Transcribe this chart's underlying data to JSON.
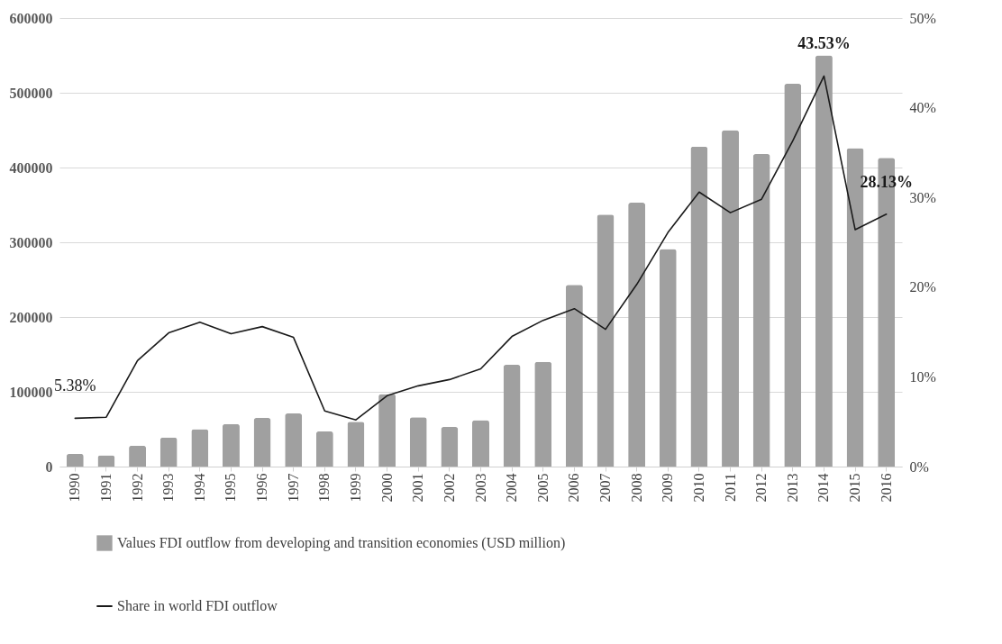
{
  "chart_data": {
    "type": "bar",
    "categories": [
      "1990",
      "1991",
      "1992",
      "1993",
      "1994",
      "1995",
      "1996",
      "1997",
      "1998",
      "1999",
      "2000",
      "2001",
      "2002",
      "2003",
      "2004",
      "2005",
      "2006",
      "2007",
      "2008",
      "2009",
      "2010",
      "2011",
      "2012",
      "2013",
      "2014",
      "2015",
      "2016"
    ],
    "series": [
      {
        "name": "Values FDI outflow from developing and transition economies (USD million)",
        "color": "#a0a0a0",
        "values": [
          17000,
          15000,
          28000,
          39000,
          50000,
          57000,
          65000,
          71000,
          47000,
          60000,
          97000,
          66000,
          53000,
          62000,
          136000,
          140000,
          243000,
          337000,
          353000,
          291000,
          428000,
          450000,
          418000,
          512000,
          550000,
          426000,
          413000
        ]
      },
      {
        "name": "Share in world FDI outflow",
        "type": "line",
        "axis": "y2",
        "color": "#1a1a1a",
        "values": [
          5.38,
          5.5,
          11.8,
          14.9,
          16.1,
          14.8,
          15.6,
          14.4,
          6.2,
          5.2,
          7.9,
          9.0,
          9.7,
          10.9,
          14.5,
          16.3,
          17.6,
          15.3,
          20.3,
          26.1,
          30.6,
          28.3,
          29.8,
          36.3,
          43.53,
          26.4,
          28.13
        ],
        "value_labels": [
          "5.38%",
          null,
          null,
          null,
          null,
          null,
          null,
          null,
          null,
          null,
          null,
          null,
          null,
          null,
          null,
          null,
          null,
          null,
          null,
          null,
          null,
          null,
          null,
          null,
          "43.53%",
          null,
          "28.13%"
        ]
      }
    ],
    "ylim": [
      0,
      600000
    ],
    "yticks": [
      0,
      100000,
      200000,
      300000,
      400000,
      500000,
      600000
    ],
    "y2lim": [
      0,
      50
    ],
    "y2ticks": [
      {
        "value": 0,
        "label": "0%"
      },
      {
        "value": 10,
        "label": "10%"
      },
      {
        "value": 20,
        "label": "20%"
      },
      {
        "value": 30,
        "label": "30%"
      },
      {
        "value": 40,
        "label": "40%"
      },
      {
        "value": 50,
        "label": "50%"
      }
    ],
    "grid": "y",
    "legend": "bottom"
  }
}
